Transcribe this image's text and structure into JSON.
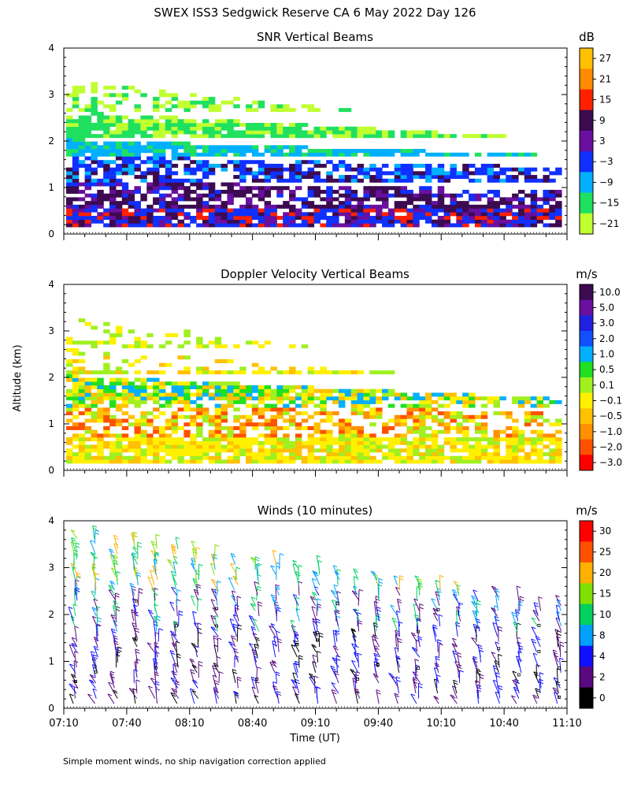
{
  "page": {
    "title": "SWEX ISS3 Sedgwick Reserve CA   6 May 2022 Day 126",
    "footnote": "Simple moment winds, no ship navigation correction applied",
    "ylabel": "Altitude (km)",
    "xlabel": "Time (UT)"
  },
  "chart_data": [
    {
      "type": "heatmap",
      "title": "SNR Vertical Beams",
      "ylim": [
        0,
        4
      ],
      "yticks": [
        "0",
        "1",
        "2",
        "3",
        "4"
      ],
      "xlim": [
        "07:10",
        "11:10"
      ],
      "colorbar": {
        "unit": "dB",
        "labels": [
          "27",
          "21",
          "15",
          "9",
          "3",
          "−3",
          "−9",
          "−15",
          "−21"
        ],
        "colors": [
          "#ffc000",
          "#ff8c00",
          "#ff2000",
          "#3c0a50",
          "#6a0fa0",
          "#1030ff",
          "#00b0ff",
          "#20e060",
          "#c0ff30"
        ]
      },
      "layers": [
        {
          "altitude_km": [
            0.15,
            0.5
          ],
          "value_db": 9
        },
        {
          "altitude_km": [
            0.5,
            1.0
          ],
          "value_db": 3
        },
        {
          "altitude_km": [
            1.0,
            1.5
          ],
          "value_db": -3
        },
        {
          "altitude_km": [
            1.5,
            1.9
          ],
          "value_db": -9
        },
        {
          "altitude_km": [
            1.9,
            2.4
          ],
          "value_db": -15
        },
        {
          "altitude_km": [
            2.4,
            3.2
          ],
          "value_db": -21
        }
      ]
    },
    {
      "type": "heatmap",
      "title": "Doppler Velocity Vertical Beams",
      "ylim": [
        0,
        4
      ],
      "yticks": [
        "0",
        "1",
        "2",
        "3",
        "4"
      ],
      "xlim": [
        "07:10",
        "11:10"
      ],
      "colorbar": {
        "unit": "m/s",
        "labels": [
          "10.0",
          "5.0",
          "3.0",
          "2.0",
          "1.0",
          "0.5",
          "0.1",
          "−0.1",
          "−0.5",
          "−1.0",
          "−2.0",
          "−3.0"
        ],
        "colors": [
          "#3c0a50",
          "#6a0fa0",
          "#2020e0",
          "#1050ff",
          "#00b0ff",
          "#20e020",
          "#a0f020",
          "#fff000",
          "#ffc000",
          "#ff9000",
          "#ff5000",
          "#ff0000"
        ]
      },
      "layers": [
        {
          "altitude_km": [
            0.15,
            0.6
          ],
          "value_ms": -0.1
        },
        {
          "altitude_km": [
            0.6,
            1.3
          ],
          "value_ms": -0.5
        },
        {
          "altitude_km": [
            1.3,
            2.0
          ],
          "value_ms": 0.1
        },
        {
          "altitude_km": [
            2.0,
            2.5
          ],
          "value_ms": 0.5
        }
      ]
    },
    {
      "type": "scatter",
      "title": "Winds (10 minutes)",
      "ylim": [
        0,
        4
      ],
      "yticks": [
        "0",
        "1",
        "2",
        "3",
        "4"
      ],
      "xticks": [
        "07:10",
        "07:40",
        "08:10",
        "08:40",
        "09:10",
        "09:40",
        "10:10",
        "10:40",
        "11:10"
      ],
      "colorbar": {
        "unit": "m/s",
        "labels": [
          "30",
          "25",
          "20",
          "15",
          "10",
          "8",
          "4",
          "2",
          "0"
        ],
        "colors": [
          "#ff0000",
          "#ff5000",
          "#ffb000",
          "#80e000",
          "#00d060",
          "#00a0ff",
          "#1010ff",
          "#5a0a80",
          "#000000"
        ]
      }
    }
  ]
}
